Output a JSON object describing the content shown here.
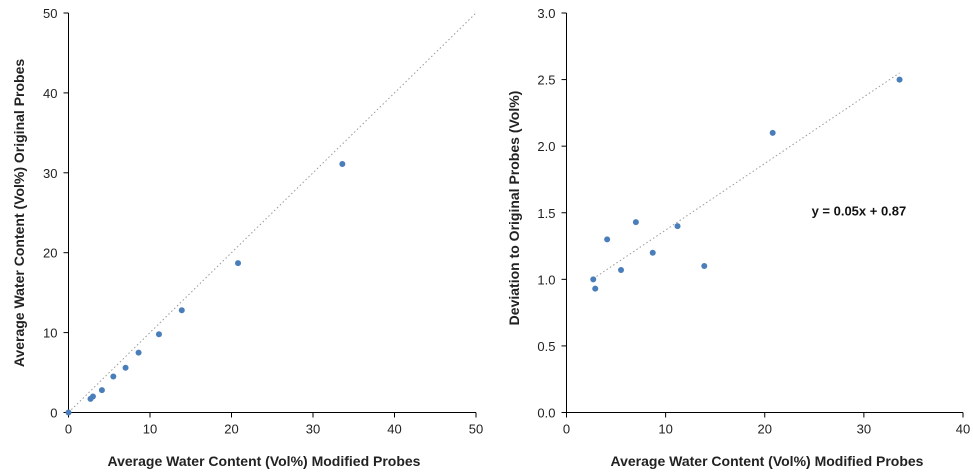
{
  "chart_data": [
    {
      "type": "scatter",
      "xlabel": "Average Water Content (Vol%) Modified Probes",
      "ylabel": "Average Water Content (Vol%) Original Probes",
      "xlim": [
        0,
        50
      ],
      "ylim": [
        0,
        50
      ],
      "xticks": [
        0,
        10,
        20,
        30,
        40,
        50
      ],
      "yticks": [
        0,
        10,
        20,
        30,
        40,
        50
      ],
      "tick_labels_x": [
        "0",
        "10",
        "20",
        "30",
        "40",
        "50"
      ],
      "tick_labels_y": [
        "0",
        "10",
        "20",
        "30",
        "40",
        "50"
      ],
      "grid": false,
      "series": [
        {
          "color": "#4a7ebb",
          "x": [
            0.0,
            2.7,
            3.0,
            4.1,
            5.5,
            7.0,
            8.6,
            11.1,
            13.9,
            20.8,
            33.6
          ],
          "y": [
            0.0,
            1.7,
            2.0,
            2.8,
            4.5,
            5.6,
            7.5,
            9.8,
            12.8,
            18.7,
            31.1
          ]
        }
      ],
      "reference_line": {
        "x": [
          0,
          50
        ],
        "y": [
          0,
          50
        ],
        "style": "dotted",
        "color": "#9a9a9a"
      }
    },
    {
      "type": "scatter",
      "xlabel": "Average Water Content (Vol%) Modified Probes",
      "ylabel": "Deviation to Original Probes  (Vol%)",
      "xlim": [
        0,
        40
      ],
      "ylim": [
        0,
        3
      ],
      "xticks": [
        0,
        10,
        20,
        30,
        40
      ],
      "yticks": [
        0.0,
        0.5,
        1.0,
        1.5,
        2.0,
        2.5,
        3.0
      ],
      "tick_labels_x": [
        "0",
        "10",
        "20",
        "30",
        "40"
      ],
      "tick_labels_y": [
        "0.0",
        "0.5",
        "1.0",
        "1.5",
        "2.0",
        "2.5",
        "3.0"
      ],
      "grid": false,
      "series": [
        {
          "color": "#4a7ebb",
          "x": [
            2.7,
            2.9,
            4.1,
            5.5,
            7.0,
            8.7,
            11.2,
            13.9,
            20.8,
            33.6
          ],
          "y": [
            1.0,
            0.93,
            1.3,
            1.07,
            1.43,
            1.2,
            1.4,
            1.1,
            2.1,
            2.5
          ]
        }
      ],
      "trendline": {
        "slope": 0.05,
        "intercept": 0.87,
        "x_range": [
          2.7,
          33.6
        ],
        "style": "dotted",
        "color": "#9a9a9a"
      },
      "annotations": [
        {
          "text": "y = 0.05x + 0.87",
          "x": 29.5,
          "y": 1.48
        }
      ]
    }
  ]
}
